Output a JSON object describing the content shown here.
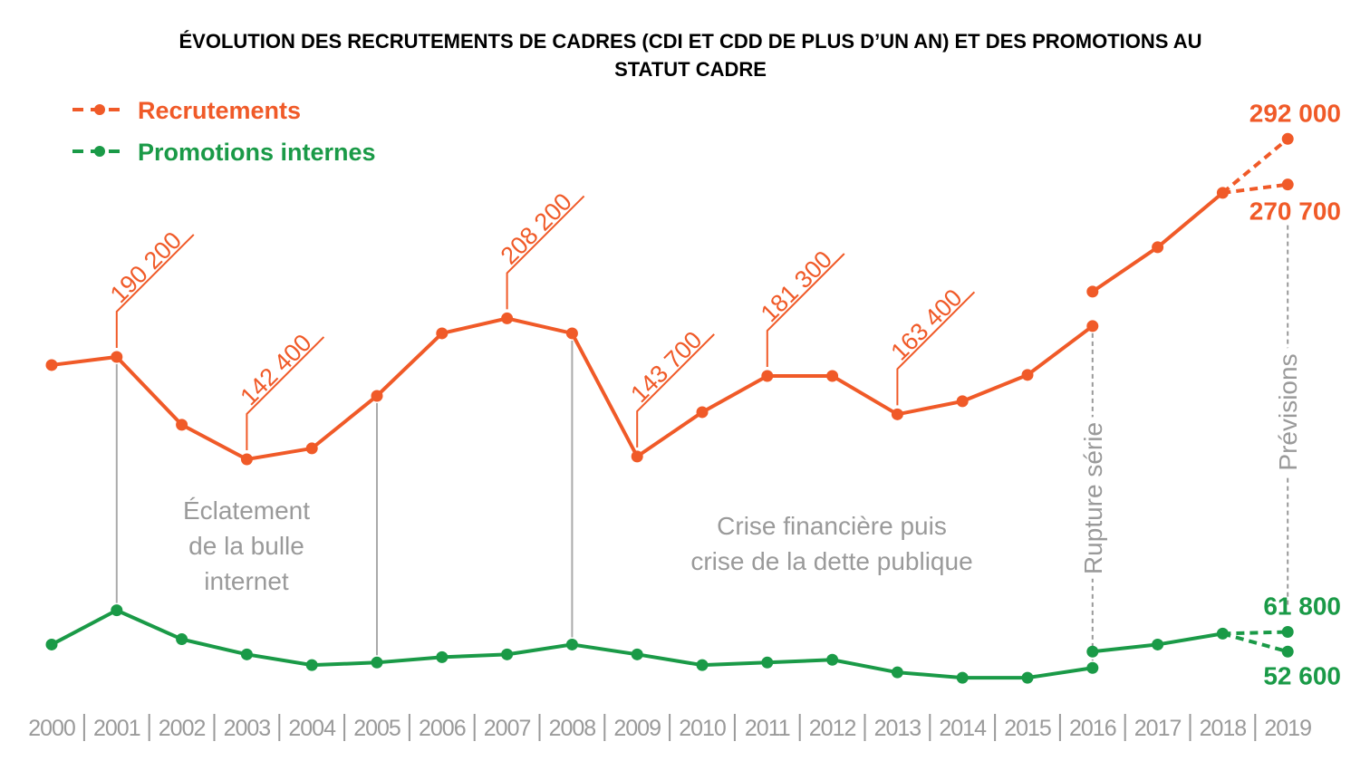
{
  "chart_data": {
    "type": "line",
    "title": "ÉVOLUTION DES RECRUTEMENTS DE CADRES (CDI ET CDD DE PLUS D’UN AN) ET DES PROMOTIONS AU STATUT CADRE",
    "categories": [
      "2000",
      "2001",
      "2002",
      "2003",
      "2004",
      "2005",
      "2006",
      "2007",
      "2008",
      "2009",
      "2010",
      "2011",
      "2012",
      "2013",
      "2014",
      "2015",
      "2016",
      "2017",
      "2018",
      "2019"
    ],
    "ylim": [
      0,
      350000
    ],
    "legend": "top-left",
    "series": [
      {
        "name": "Recrutements",
        "color": "#f05a28",
        "values": [
          186400,
          190200,
          158500,
          142400,
          147500,
          172000,
          201200,
          208200,
          201200,
          143700,
          164400,
          181300,
          181300,
          163400,
          169500,
          181800,
          204600,
          null,
          null,
          null
        ],
        "value_labels": [
          null,
          "190 200",
          null,
          "142 400",
          null,
          null,
          null,
          "208 200",
          null,
          "143 700",
          null,
          "181 300",
          null,
          "163 400",
          null,
          null,
          null,
          null,
          null,
          null
        ],
        "values_after_break": [
          null,
          null,
          null,
          null,
          null,
          null,
          null,
          null,
          null,
          null,
          null,
          null,
          null,
          null,
          null,
          null,
          220700,
          241400,
          266800,
          null
        ],
        "forecast": [
          292000,
          270700
        ],
        "forecast_labels": [
          "292 000",
          "270 700"
        ]
      },
      {
        "name": "Promotions internes",
        "color": "#1a9a47",
        "values": [
          55900,
          71900,
          58400,
          51300,
          46300,
          47500,
          50000,
          51300,
          55900,
          51300,
          46300,
          47500,
          48800,
          42900,
          40400,
          40400,
          45000,
          null,
          null,
          null
        ],
        "values_after_break": [
          null,
          null,
          null,
          null,
          null,
          null,
          null,
          null,
          null,
          null,
          null,
          null,
          null,
          null,
          null,
          null,
          52600,
          55900,
          61000,
          null
        ],
        "forecast": [
          61800,
          52600
        ],
        "forecast_labels": [
          "61 800",
          "52 600"
        ]
      }
    ],
    "annotations": [
      [
        "Éclatement",
        "de la bulle",
        "internet"
      ],
      [
        "Crise financière puis",
        "crise de la dette publique"
      ]
    ],
    "break_label": "Rupture série",
    "forecast_label": "Prévisions"
  }
}
